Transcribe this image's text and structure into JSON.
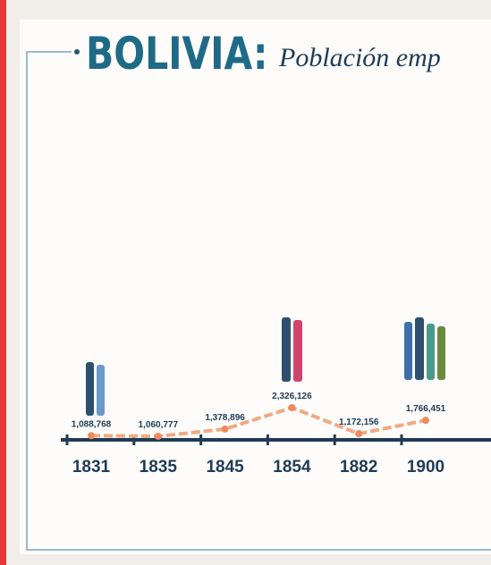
{
  "chart_data": {
    "type": "line",
    "title": "BOLIVIA:",
    "subtitle": "Población emp",
    "categories": [
      "1831",
      "1835",
      "1845",
      "1854",
      "1882",
      "1900"
    ],
    "values": [
      1088768,
      1060777,
      1378896,
      2326126,
      1172156,
      1766451
    ],
    "value_labels": [
      "1,088,768",
      "1,060,777",
      "1,378,896",
      "2,326,126",
      "1,172,156",
      "1,766,451"
    ],
    "color": "#f2a983"
  }
}
